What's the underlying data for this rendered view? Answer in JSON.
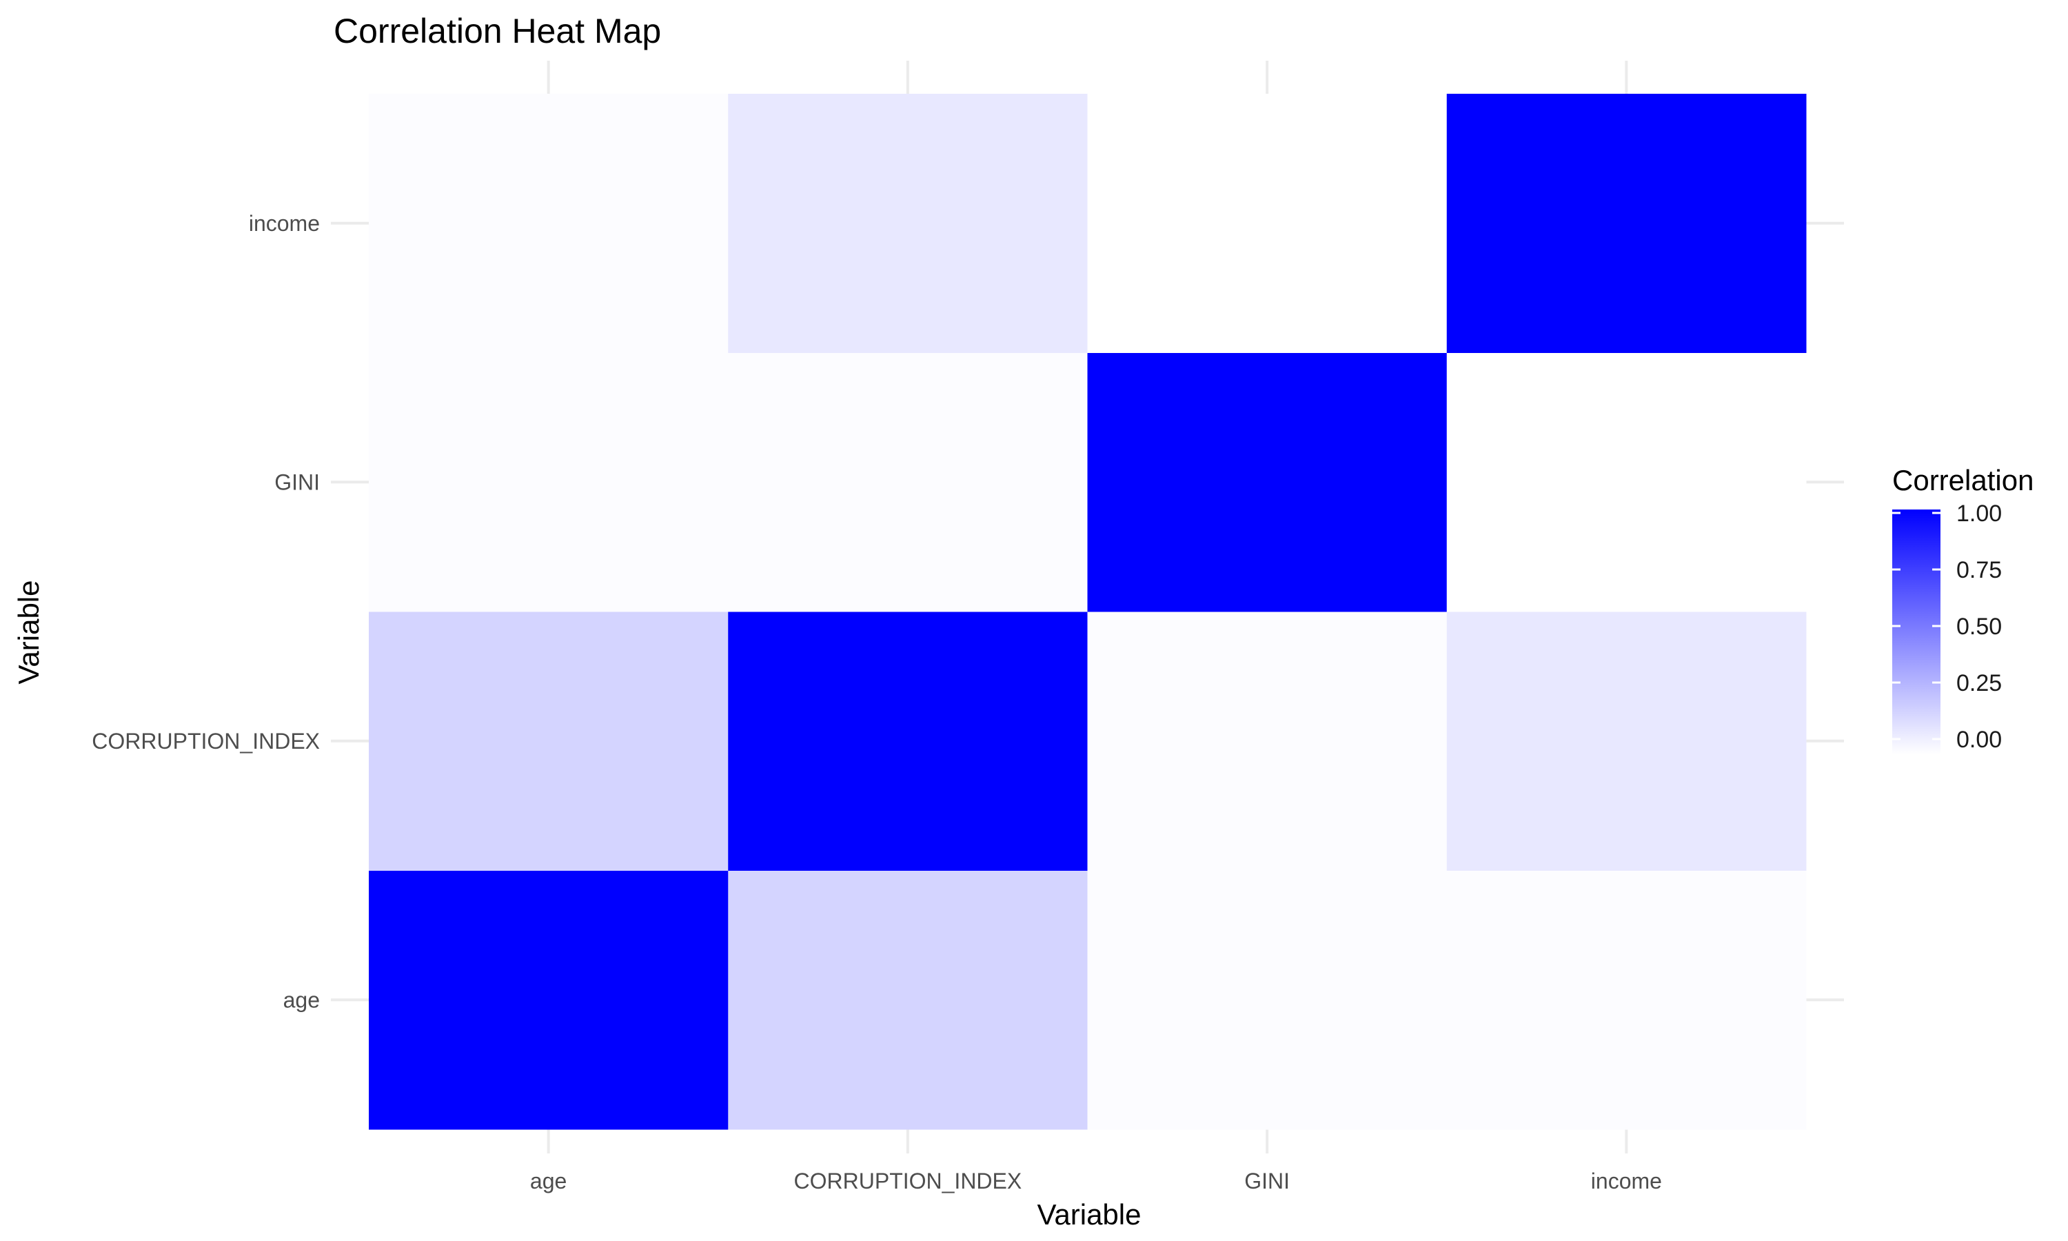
{
  "chart_data": {
    "type": "heatmap",
    "title": "Correlation Heat Map",
    "xlabel": "Variable",
    "ylabel": "Variable",
    "x_categories": [
      "age",
      "CORRUPTION_INDEX",
      "GINI",
      "income"
    ],
    "y_categories": [
      "age",
      "CORRUPTION_INDEX",
      "GINI",
      "income"
    ],
    "values": [
      [
        1.0,
        0.17,
        0.01,
        0.01
      ],
      [
        0.17,
        1.0,
        0.01,
        0.09
      ],
      [
        0.01,
        0.01,
        1.0,
        0.0
      ],
      [
        0.01,
        0.09,
        0.0,
        1.0
      ]
    ],
    "legend": {
      "title": "Correlation",
      "ticks": [
        "1.00",
        "0.75",
        "0.50",
        "0.25",
        "0.00"
      ],
      "tick_values": [
        1.0,
        0.75,
        0.5,
        0.25,
        0.0
      ],
      "range": [
        0,
        1
      ],
      "placement": "right"
    },
    "colors": {
      "low": "#ffffff",
      "high": "#0000ff"
    },
    "grid": true
  }
}
